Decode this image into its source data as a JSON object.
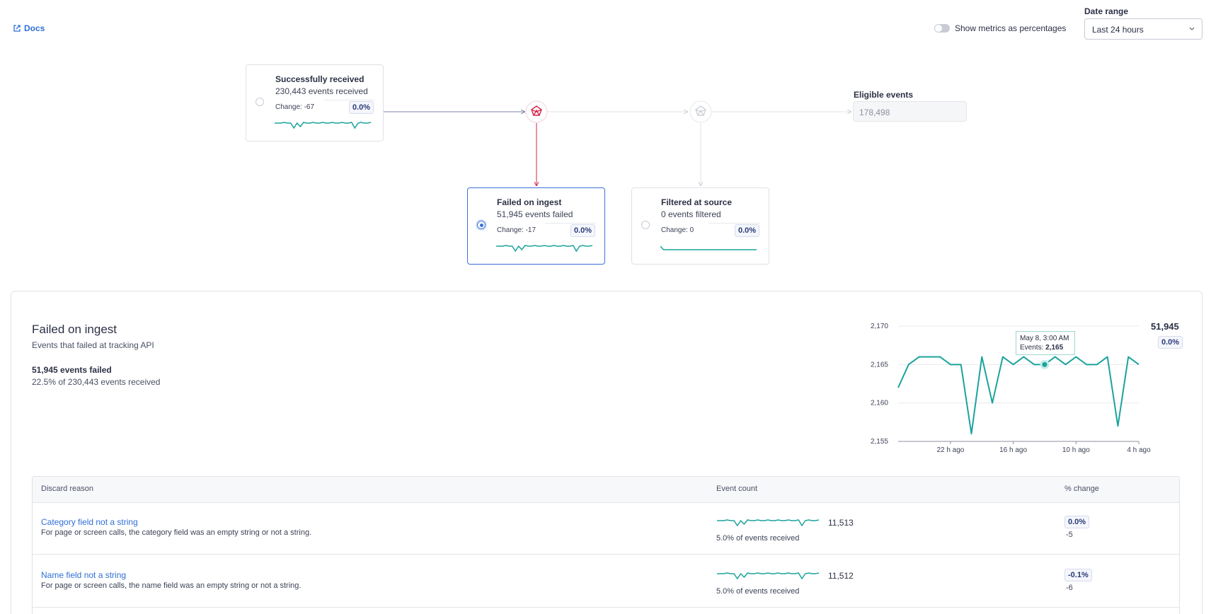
{
  "header": {
    "docs": "Docs",
    "toggle_label": "Show metrics as percentages",
    "date_range_label": "Date range",
    "date_range_value": "Last 24 hours"
  },
  "flow": {
    "nodes": [
      {
        "title": "Successfully received",
        "subtitle": "230,443 events received",
        "change": "Change: -67",
        "badge": "0.0%"
      },
      {
        "title": "Failed on ingest",
        "subtitle": "51,945 events failed",
        "change": "Change: -17",
        "badge": "0.0%"
      },
      {
        "title": "Filtered at source",
        "subtitle": "0 events filtered",
        "change": "Change: 0",
        "badge": "0.0%"
      }
    ],
    "eligible": {
      "label": "Eligible events",
      "value": "178,498"
    }
  },
  "detail": {
    "title": "Failed on ingest",
    "subtitle": "Events that failed at tracking API",
    "count": "51,945 events failed",
    "ratio": "22.5% of 230,443 events received"
  },
  "chart_data": {
    "type": "line",
    "color": "#1ba39c",
    "x": [
      -27,
      -26,
      -25,
      -24,
      -23,
      -22,
      -21,
      -20,
      -19,
      -18,
      -17,
      -16,
      -15,
      -14,
      -13,
      -12,
      -11,
      -10,
      -9,
      -8,
      -7,
      -6,
      -5,
      -4
    ],
    "values": [
      2162,
      2165,
      2166,
      2166,
      2166,
      2165,
      2165,
      2156,
      2166,
      2160,
      2166,
      2165,
      2166,
      2165,
      2165,
      2166,
      2165,
      2166,
      2165,
      2165,
      2166,
      2157,
      2166,
      2165
    ],
    "xlim": [
      -27,
      -4
    ],
    "xticks": [
      {
        "value": -22,
        "label": "22 h ago"
      },
      {
        "value": -16,
        "label": "16 h ago"
      },
      {
        "value": -10,
        "label": "10 h ago"
      },
      {
        "value": -4,
        "label": "4 h ago"
      }
    ],
    "ylim": [
      2155,
      2170
    ],
    "yticks": [
      {
        "value": 2155,
        "label": "2,155"
      },
      {
        "value": 2160,
        "label": "2,160"
      },
      {
        "value": 2165,
        "label": "2,165"
      },
      {
        "value": 2170,
        "label": "2,170"
      }
    ],
    "grid": true,
    "total": "51,945",
    "badge": "0.0%",
    "tooltip": {
      "date": "May 8, 3:00 AM",
      "label": "Events:",
      "value": "2,165"
    }
  },
  "table": {
    "headers": [
      "Discard reason",
      "Event count",
      "% change"
    ],
    "rows": [
      {
        "reason": "Category field not a string",
        "description": "For page or screen calls, the category field was an empty string or not a string.",
        "count": "11,513",
        "share": "5.0% of events received",
        "badge": "0.0%",
        "change": "-5"
      },
      {
        "reason": "Name field not a string",
        "description": "For page or screen calls, the name field was an empty string or not a string.",
        "count": "11,512",
        "share": "5.0% of events received",
        "badge": "-0.1%",
        "change": "-6"
      }
    ]
  }
}
